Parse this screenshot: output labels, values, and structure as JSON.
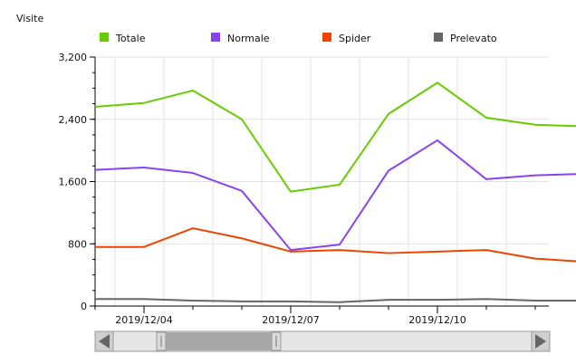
{
  "chart_data": {
    "type": "line",
    "ylabel": "Visite",
    "ylim": [
      0,
      3200
    ],
    "y_ticks": [
      "3,200",
      "2,400",
      "1,600",
      "800",
      "0"
    ],
    "y_tick_values": [
      3200,
      2400,
      1600,
      800,
      0
    ],
    "x_tick_labels": [
      "2019/12/04",
      "2019/12/07",
      "2019/12/10"
    ],
    "x_tick_index": [
      1,
      4,
      7
    ],
    "grid": true,
    "legend_position": "top",
    "series": [
      {
        "name": "Totale",
        "color": "#66cc00",
        "values": [
          2560,
          2610,
          2770,
          2400,
          1470,
          1560,
          2470,
          2870,
          2420,
          2330,
          2310
        ]
      },
      {
        "name": "Normale",
        "color": "#8844ee",
        "values": [
          1750,
          1780,
          1710,
          1480,
          720,
          790,
          1740,
          2130,
          1630,
          1680,
          1700
        ]
      },
      {
        "name": "Spider",
        "color": "#ee4400",
        "values": [
          760,
          760,
          1000,
          870,
          700,
          720,
          680,
          700,
          720,
          610,
          570
        ]
      },
      {
        "name": "Prelevato",
        "color": "#666666",
        "values": [
          90,
          90,
          70,
          60,
          60,
          50,
          80,
          80,
          90,
          70,
          70
        ]
      }
    ]
  },
  "scrollbar": {
    "left_arrow": "◀",
    "right_arrow": "▶"
  }
}
